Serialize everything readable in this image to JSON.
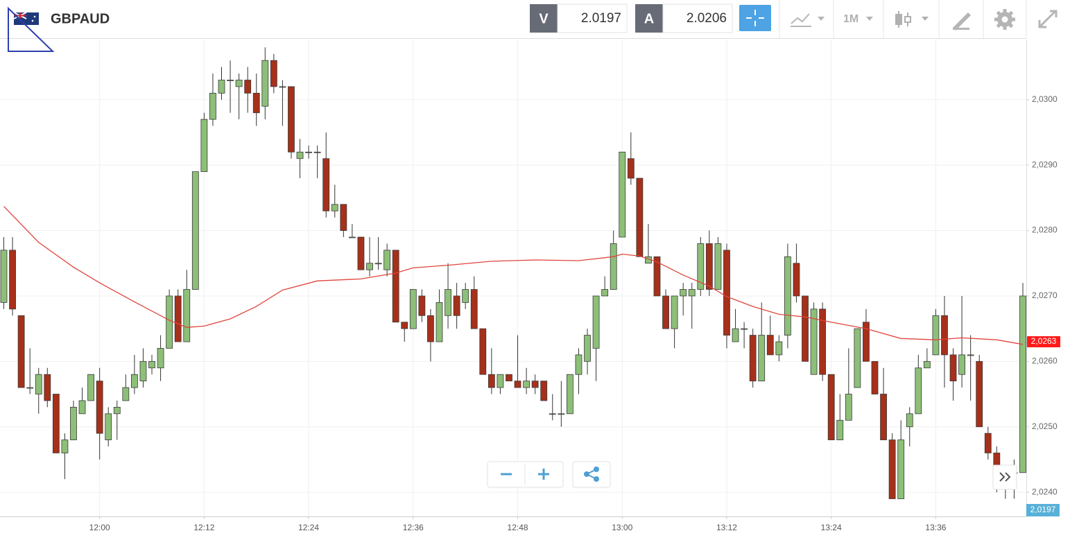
{
  "header": {
    "symbol": "GBPAUD",
    "bid_label": "V",
    "bid": "2.0197",
    "ask_label": "A",
    "ask": "2.0206",
    "timeframe": "1M"
  },
  "chart_data": {
    "type": "candlestick",
    "x": [
      "11:49",
      "11:50",
      "11:51",
      "11:52",
      "11:53",
      "11:54",
      "11:55",
      "11:56",
      "11:57",
      "11:58",
      "11:59",
      "12:00",
      "12:01",
      "12:02",
      "12:03",
      "12:04",
      "12:05",
      "12:06",
      "12:07",
      "12:08",
      "12:09",
      "12:10",
      "12:11",
      "12:12",
      "12:13",
      "12:14",
      "12:15",
      "12:16",
      "12:17",
      "12:18",
      "12:19",
      "12:20",
      "12:21",
      "12:22",
      "12:23",
      "12:24",
      "12:25",
      "12:26",
      "12:27",
      "12:28",
      "12:29",
      "12:30",
      "12:31",
      "12:32",
      "12:33",
      "12:34",
      "12:35",
      "12:36",
      "12:37",
      "12:38",
      "12:39",
      "12:40",
      "12:41",
      "12:42",
      "12:43",
      "12:44",
      "12:45",
      "12:46",
      "12:47",
      "12:48",
      "12:49",
      "12:50",
      "12:51",
      "12:52",
      "12:53",
      "12:54",
      "12:55",
      "12:56",
      "12:57",
      "12:58",
      "12:59",
      "13:00",
      "13:01",
      "13:02",
      "13:03",
      "13:04",
      "13:05",
      "13:06",
      "13:07",
      "13:08",
      "13:09",
      "13:10",
      "13:11",
      "13:12",
      "13:13",
      "13:14",
      "13:15",
      "13:16",
      "13:17",
      "13:18",
      "13:19",
      "13:20",
      "13:21",
      "13:22",
      "13:23",
      "13:24",
      "13:25",
      "13:26",
      "13:27",
      "13:28",
      "13:29",
      "13:30",
      "13:31",
      "13:32",
      "13:33",
      "13:34",
      "13:35",
      "13:36",
      "13:37",
      "13:38",
      "13:39",
      "13:40",
      "13:41",
      "13:42",
      "13:43",
      "13:44",
      "13:45",
      "13:46"
    ],
    "open": [
      2.0269,
      2.0277,
      2.0267,
      2.0256,
      2.0255,
      2.0258,
      2.0255,
      2.0246,
      2.0248,
      2.0252,
      2.0254,
      2.0257,
      2.0248,
      2.0252,
      2.0254,
      2.0256,
      2.0257,
      2.0259,
      2.0259,
      2.0262,
      2.027,
      2.0263,
      2.0271,
      2.0289,
      2.0297,
      2.0301,
      2.0303,
      2.0302,
      2.0303,
      2.0301,
      2.0299,
      2.0306,
      2.0302,
      2.0302,
      2.0291,
      2.0292,
      2.0292,
      2.0291,
      2.0283,
      2.0284,
      2.0279,
      2.0279,
      2.0274,
      2.0275,
      2.0274,
      2.0277,
      2.0266,
      2.0265,
      2.027,
      2.0267,
      2.0263,
      2.0267,
      2.027,
      2.0269,
      2.0271,
      2.0265,
      2.0258,
      2.0256,
      2.0258,
      2.0257,
      2.0256,
      2.0257,
      2.0257,
      2.0252,
      2.0252,
      2.0252,
      2.0258,
      2.026,
      2.0262,
      2.027,
      2.0271,
      2.0279,
      2.0291,
      2.0288,
      2.0275,
      2.0276,
      2.027,
      2.0265,
      2.027,
      2.027,
      2.0271,
      2.0278,
      2.0271,
      2.0277,
      2.0263,
      2.0265,
      2.0264,
      2.0257,
      2.0264,
      2.0261,
      2.0264,
      2.0275,
      2.027,
      2.0258,
      2.0268,
      2.0258,
      2.0248,
      2.0251,
      2.0256,
      2.0266,
      2.026,
      2.0255,
      2.0248,
      2.0239,
      2.025,
      2.0252,
      2.0259,
      2.0261,
      2.0267,
      2.0261,
      2.0258,
      2.0261,
      2.026,
      2.0249,
      2.0246,
      2.0241,
      2.0243,
      2.0243
    ],
    "high": [
      2.0279,
      2.0279,
      2.0267,
      2.0262,
      2.0259,
      2.0259,
      2.0255,
      2.0249,
      2.0254,
      2.0256,
      2.0258,
      2.0259,
      2.0253,
      2.0254,
      2.0258,
      2.0261,
      2.0262,
      2.0261,
      2.0264,
      2.0271,
      2.0271,
      2.0274,
      2.0289,
      2.0298,
      2.0304,
      2.0305,
      2.0306,
      2.0304,
      2.0305,
      2.0304,
      2.0308,
      2.0307,
      2.0303,
      2.0302,
      2.0294,
      2.0293,
      2.0293,
      2.0295,
      2.0287,
      2.0284,
      2.0281,
      2.0279,
      2.0279,
      2.0279,
      2.0278,
      2.0277,
      2.0266,
      2.0271,
      2.0271,
      2.0268,
      2.0271,
      2.0275,
      2.0272,
      2.0272,
      2.0273,
      2.0265,
      2.0262,
      2.0258,
      2.0258,
      2.0264,
      2.0259,
      2.0258,
      2.0257,
      2.0255,
      2.0257,
      2.0258,
      2.0262,
      2.0265,
      2.027,
      2.0273,
      2.028,
      2.0292,
      2.0295,
      2.0288,
      2.0281,
      2.0276,
      2.0271,
      2.027,
      2.0272,
      2.0272,
      2.0279,
      2.028,
      2.0279,
      2.0278,
      2.0268,
      2.0266,
      2.0265,
      2.0269,
      2.0267,
      2.0264,
      2.0278,
      2.0278,
      2.027,
      2.0269,
      2.0269,
      2.0258,
      2.0255,
      2.0262,
      2.0265,
      2.0268,
      2.026,
      2.0259,
      2.0249,
      2.0251,
      2.0253,
      2.0261,
      2.0262,
      2.0268,
      2.027,
      2.0262,
      2.027,
      2.0264,
      2.0261,
      2.025,
      2.0247,
      2.0243,
      2.0245,
      2.0272
    ],
    "low": [
      2.0268,
      2.0267,
      2.0256,
      2.0255,
      2.0252,
      2.0253,
      2.0246,
      2.0242,
      2.0248,
      2.0252,
      2.0254,
      2.0245,
      2.0247,
      2.0248,
      2.0254,
      2.0255,
      2.0256,
      2.0258,
      2.0257,
      2.0262,
      2.0263,
      2.0263,
      2.0271,
      2.0289,
      2.0296,
      2.03,
      2.0298,
      2.0297,
      2.0298,
      2.0296,
      2.0297,
      2.0301,
      2.0296,
      2.0291,
      2.0288,
      2.0291,
      2.0288,
      2.0282,
      2.0282,
      2.0279,
      2.0279,
      2.0274,
      2.0273,
      2.0274,
      2.0273,
      2.0266,
      2.0263,
      2.0265,
      2.0266,
      2.026,
      2.0263,
      2.0265,
      2.0265,
      2.0268,
      2.0265,
      2.0258,
      2.0255,
      2.0255,
      2.0257,
      2.0256,
      2.0255,
      2.0255,
      2.0254,
      2.0251,
      2.025,
      2.0252,
      2.0255,
      2.0258,
      2.0257,
      2.027,
      2.0271,
      2.0279,
      2.0287,
      2.0276,
      2.0275,
      2.027,
      2.0265,
      2.0262,
      2.0267,
      2.0265,
      2.027,
      2.027,
      2.0271,
      2.0262,
      2.0263,
      2.0262,
      2.0256,
      2.0257,
      2.0261,
      2.026,
      2.0262,
      2.0269,
      2.026,
      2.0258,
      2.0257,
      2.0248,
      2.0248,
      2.0251,
      2.0256,
      2.026,
      2.0255,
      2.0248,
      2.0239,
      2.0239,
      2.0247,
      2.0252,
      2.0259,
      2.0261,
      2.0256,
      2.0254,
      2.0256,
      2.0254,
      2.025,
      2.0245,
      2.024,
      2.0239,
      2.0239,
      2.0243
    ],
    "close": [
      2.0277,
      2.0268,
      2.0256,
      2.0256,
      2.0258,
      2.0254,
      2.0246,
      2.0248,
      2.0253,
      2.0254,
      2.0258,
      2.0249,
      2.0252,
      2.0253,
      2.0256,
      2.0258,
      2.026,
      2.026,
      2.0262,
      2.027,
      2.0263,
      2.0271,
      2.0289,
      2.0297,
      2.0301,
      2.0303,
      2.0303,
      2.0303,
      2.0301,
      2.0298,
      2.0306,
      2.0302,
      2.0302,
      2.0292,
      2.0292,
      2.0292,
      2.0292,
      2.0283,
      2.0284,
      2.028,
      2.0279,
      2.0274,
      2.0275,
      2.0275,
      2.0277,
      2.0266,
      2.0265,
      2.0271,
      2.0267,
      2.0263,
      2.0269,
      2.0271,
      2.0267,
      2.0271,
      2.0265,
      2.0258,
      2.0256,
      2.0258,
      2.0257,
      2.0256,
      2.0257,
      2.0256,
      2.0254,
      2.0252,
      2.0252,
      2.0258,
      2.0261,
      2.0264,
      2.027,
      2.0271,
      2.0278,
      2.0292,
      2.0288,
      2.0276,
      2.0276,
      2.027,
      2.0265,
      2.027,
      2.0271,
      2.0271,
      2.0278,
      2.0271,
      2.0278,
      2.0264,
      2.0265,
      2.0265,
      2.0257,
      2.0264,
      2.0261,
      2.0263,
      2.0276,
      2.027,
      2.026,
      2.0268,
      2.0258,
      2.0248,
      2.0251,
      2.0255,
      2.0265,
      2.026,
      2.0255,
      2.0248,
      2.0239,
      2.0248,
      2.0252,
      2.0259,
      2.026,
      2.0267,
      2.0261,
      2.0257,
      2.0261,
      2.0261,
      2.025,
      2.0246,
      2.0244,
      2.0241,
      2.0243,
      2.027
    ],
    "up_color": "#8dbf78",
    "down_color": "#a6301a",
    "ma_x": [
      "11:49",
      "11:53",
      "11:57",
      "12:00",
      "12:04",
      "12:08",
      "12:10",
      "12:12",
      "12:15",
      "12:18",
      "12:21",
      "12:25",
      "12:30",
      "12:34",
      "12:36",
      "12:40",
      "12:45",
      "12:50",
      "12:55",
      "12:59",
      "13:00",
      "13:02",
      "13:04",
      "13:07",
      "13:10",
      "13:12",
      "13:15",
      "13:18",
      "13:21",
      "13:24",
      "13:28",
      "13:32",
      "13:36",
      "13:39",
      "13:43",
      "13:46"
    ],
    "ma_values": [
      2.02837,
      2.02782,
      2.02744,
      2.0272,
      2.02691,
      2.02663,
      2.02652,
      2.02654,
      2.02665,
      2.02684,
      2.02709,
      2.02723,
      2.02726,
      2.02735,
      2.02743,
      2.02747,
      2.02753,
      2.02755,
      2.02754,
      2.0276,
      2.02764,
      2.02761,
      2.02752,
      2.02732,
      2.02715,
      2.02699,
      2.02684,
      2.02672,
      2.02668,
      2.0266,
      2.0265,
      2.02635,
      2.02633,
      2.02636,
      2.02633,
      2.02626
    ],
    "ma_color": "#e0443c",
    "ma_last": {
      "value": 2.0263,
      "label": "2,0263"
    },
    "bid_price_label": "2,0197",
    "ylim": [
      2.02363,
      2.03092
    ],
    "yticks": [
      {
        "value": 2.024,
        "label": "2,0240"
      },
      {
        "value": 2.025,
        "label": "2,0250"
      },
      {
        "value": 2.026,
        "label": "2,0260"
      },
      {
        "value": 2.027,
        "label": "2,0270"
      },
      {
        "value": 2.028,
        "label": "2,0280"
      },
      {
        "value": 2.029,
        "label": "2,0290"
      },
      {
        "value": 2.03,
        "label": "2,0300"
      }
    ],
    "xticks": [
      "12:00",
      "12:12",
      "12:24",
      "12:36",
      "12:48",
      "13:00",
      "13:12",
      "13:24",
      "13:36"
    ],
    "grid": true
  }
}
